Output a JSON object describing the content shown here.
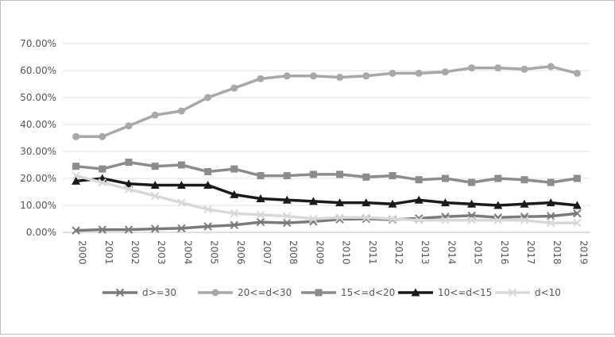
{
  "chart_data": {
    "type": "line",
    "title": "",
    "xlabel": "",
    "ylabel": "",
    "x": [
      "2000",
      "2001",
      "2002",
      "2003",
      "2004",
      "2005",
      "2006",
      "2007",
      "2008",
      "2009",
      "2010",
      "2011",
      "2012",
      "2013",
      "2014",
      "2015",
      "2016",
      "2017",
      "2018",
      "2019"
    ],
    "y_ticks": [
      "0.00%",
      "10.00%",
      "20.00%",
      "30.00%",
      "40.00%",
      "50.00%",
      "60.00%",
      "70.00%"
    ],
    "ylim": [
      0,
      70
    ],
    "y_unit": "percent",
    "grid": "horizontal",
    "legend_position": "bottom",
    "series": [
      {
        "name": "d>=30",
        "marker": "x",
        "color": "#7a7a7a",
        "values": [
          0.7,
          1.0,
          1.0,
          1.3,
          1.5,
          2.2,
          2.7,
          3.8,
          3.5,
          4.0,
          4.8,
          5.0,
          4.7,
          5.2,
          5.8,
          6.2,
          5.5,
          5.8,
          6.0,
          7.0
        ]
      },
      {
        "name": "20<=d<30",
        "marker": "circle",
        "color": "#a8a8a8",
        "values": [
          35.5,
          35.5,
          39.5,
          43.5,
          45.0,
          50.0,
          53.5,
          57.0,
          58.0,
          58.0,
          57.5,
          58.0,
          59.0,
          59.0,
          59.5,
          61.0,
          61.0,
          60.5,
          61.5,
          59.0
        ]
      },
      {
        "name": "15<=d<20",
        "marker": "square",
        "color": "#8c8c8c",
        "values": [
          24.5,
          23.5,
          26.0,
          24.5,
          25.0,
          22.5,
          23.5,
          21.0,
          21.0,
          21.5,
          21.5,
          20.5,
          21.0,
          19.5,
          20.0,
          18.5,
          20.0,
          19.5,
          18.5,
          20.0
        ]
      },
      {
        "name": "10<=d<15",
        "marker": "triangle",
        "color": "#1a1a1a",
        "values": [
          19.0,
          20.0,
          18.0,
          17.5,
          17.5,
          17.5,
          14.0,
          12.5,
          12.0,
          11.5,
          11.0,
          11.0,
          10.5,
          12.0,
          11.0,
          10.5,
          10.0,
          10.5,
          11.0,
          10.0
        ]
      },
      {
        "name": "d<10",
        "marker": "x",
        "color": "#d8d8d8",
        "values": [
          21.0,
          18.5,
          16.0,
          13.5,
          11.0,
          8.5,
          7.0,
          6.5,
          6.0,
          5.0,
          5.5,
          5.5,
          5.0,
          4.5,
          4.5,
          4.5,
          4.5,
          4.5,
          3.5,
          3.5
        ]
      }
    ]
  }
}
